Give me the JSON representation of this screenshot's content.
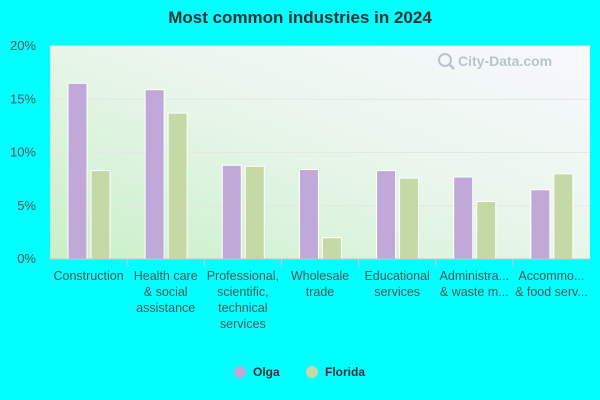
{
  "chart_data": {
    "type": "bar",
    "title": "Most common industries in 2024",
    "xlabel": "",
    "ylabel": "",
    "ylim": [
      0,
      20
    ],
    "yticks": [
      "0%",
      "5%",
      "10%",
      "15%",
      "20%"
    ],
    "ytick_values": [
      0,
      5,
      10,
      15,
      20
    ],
    "grid": true,
    "legend_position": "bottom",
    "categories": [
      [
        "Construction"
      ],
      [
        "Health care",
        "& social",
        "assistance"
      ],
      [
        "Professional,",
        "scientific,",
        "technical",
        "services"
      ],
      [
        "Wholesale",
        "trade"
      ],
      [
        "Educational",
        "services"
      ],
      [
        "Administra...",
        "& waste m..."
      ],
      [
        "Accommo...",
        "& food serv..."
      ]
    ],
    "series": [
      {
        "name": "Olga",
        "color": "#c0a8d8",
        "values": [
          16.5,
          15.9,
          8.8,
          8.4,
          8.3,
          7.7,
          6.5
        ]
      },
      {
        "name": "Florida",
        "color": "#c4d9a6",
        "values": [
          8.3,
          13.7,
          8.7,
          2.0,
          7.6,
          5.4,
          8.0
        ]
      }
    ]
  },
  "watermark": {
    "text": "City-Data.com",
    "icon": "magnifier-chart-icon"
  }
}
